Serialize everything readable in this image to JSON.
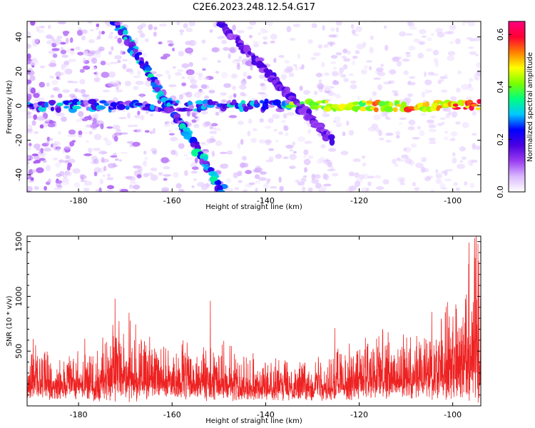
{
  "title": "C2E6.2023.248.12.54.G17",
  "chart_data": [
    {
      "type": "heatmap",
      "xlabel": "Height of straight line (km)",
      "ylabel": "Frequency (Hz)",
      "xlim": [
        -191,
        -94
      ],
      "ylim": [
        -50,
        49
      ],
      "x_ticks": [
        -180,
        -160,
        -140,
        -120,
        -100
      ],
      "x_tick_labels": [
        "-180",
        "-160",
        "-140",
        "-120",
        "-100"
      ],
      "y_ticks": [
        -40,
        -20,
        0,
        20,
        40
      ],
      "y_tick_labels": [
        "-40",
        "-20",
        "0",
        "20",
        "40"
      ],
      "colorbar": {
        "label": "Normalized spectral amplitude",
        "range": [
          0.0,
          0.65
        ],
        "ticks": [
          0.0,
          0.2,
          0.4,
          0.6
        ],
        "tick_labels": [
          "0.0",
          "0.2",
          "0.4",
          "0.6"
        ],
        "colormap": [
          "#ffffff",
          "#d9b8ff",
          "#9a3cf0",
          "#4b00e0",
          "#0000ff",
          "#00c8ff",
          "#00ff80",
          "#7aff00",
          "#ffff00",
          "#ff8000",
          "#ff0033",
          "#ff0080"
        ]
      },
      "features": [
        {
          "name": "horizontal band",
          "x": [
            -191,
            -94
          ],
          "y": [
            0,
            0
          ],
          "peak_amplitude": 0.62
        },
        {
          "name": "descending streak 1",
          "x": [
            -172,
            -149
          ],
          "y": [
            49,
            -50
          ],
          "peak_amplitude": 0.35
        },
        {
          "name": "descending streak 2",
          "x": [
            -150,
            -126
          ],
          "y": [
            49,
            -20
          ],
          "peak_amplitude": 0.2
        }
      ]
    },
    {
      "type": "line",
      "xlabel": "Height of straight line (km)",
      "ylabel": "SNR (10 * v/v)",
      "xlim": [
        -191,
        -94
      ],
      "ylim": [
        0,
        1550
      ],
      "x_ticks": [
        -180,
        -160,
        -140,
        -120,
        -100
      ],
      "x_tick_labels": [
        "-180",
        "-160",
        "-140",
        "-120",
        "-100"
      ],
      "y_ticks": [
        500,
        1000,
        1500
      ],
      "y_tick_labels": [
        "500",
        "1000",
        "1500"
      ],
      "line_color": "#ee2222",
      "envelope": {
        "x": [
          -191,
          -185,
          -180,
          -175,
          -172,
          -170,
          -168,
          -165,
          -160,
          -155,
          -150,
          -145,
          -140,
          -135,
          -130,
          -125,
          -120,
          -115,
          -110,
          -105,
          -100,
          -97,
          -95,
          -94
        ],
        "y_high": [
          520,
          450,
          430,
          520,
          720,
          780,
          650,
          560,
          520,
          470,
          500,
          420,
          360,
          360,
          390,
          470,
          530,
          580,
          560,
          690,
          880,
          1150,
          1480,
          1000
        ]
      },
      "peaks": [
        {
          "x": -172.2,
          "y": 980
        },
        {
          "x": -169.2,
          "y": 850
        },
        {
          "x": -151.8,
          "y": 960
        },
        {
          "x": -125.2,
          "y": 710
        },
        {
          "x": -96.5,
          "y": 1490
        },
        {
          "x": -95.2,
          "y": 1350
        },
        {
          "x": -94.6,
          "y": 1480
        }
      ]
    }
  ]
}
